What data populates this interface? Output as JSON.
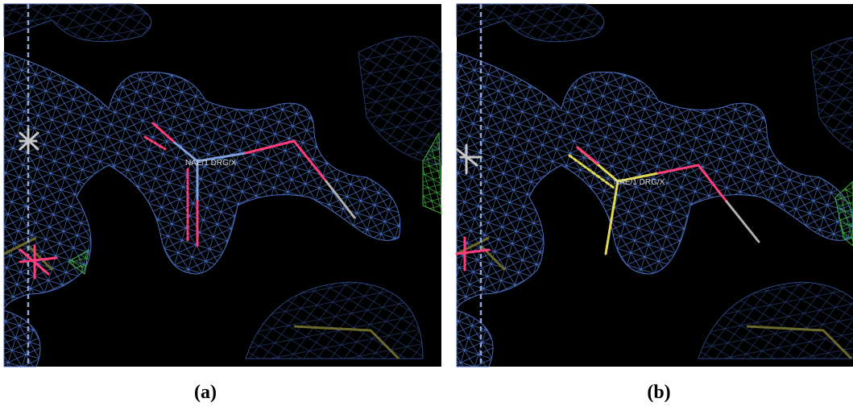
{
  "panels": [
    {
      "label": "(a)",
      "atom_label": "NAE/1 DRG/X"
    },
    {
      "label": "(b)",
      "atom_label": "NAE/1 DRG/X"
    }
  ]
}
